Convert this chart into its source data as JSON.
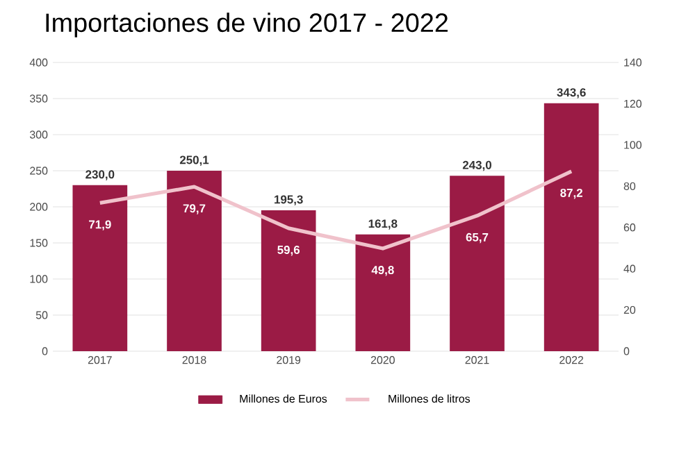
{
  "chart_data": {
    "type": "bar",
    "title": "Importaciones de vino 2017 - 2022",
    "categories": [
      "2017",
      "2018",
      "2019",
      "2020",
      "2021",
      "2022"
    ],
    "series": [
      {
        "name": "Millones de Euros",
        "color": "#9b1b45",
        "values": [
          230.0,
          250.1,
          195.3,
          161.8,
          243.0,
          343.6
        ],
        "value_labels": [
          "230,0",
          "250,1",
          "195,3",
          "161,8",
          "243,0",
          "343,6"
        ]
      },
      {
        "name": "Millones de litros",
        "type": "line",
        "axis": "y2",
        "color": "#f0c2cb",
        "line_style": "solid",
        "marker": "none",
        "values": [
          71.9,
          79.7,
          59.6,
          49.8,
          65.7,
          87.2
        ],
        "value_labels": [
          "71,9",
          "79,7",
          "59,6",
          "49,8",
          "65,7",
          "87,2"
        ]
      }
    ],
    "ylim": [
      0,
      400
    ],
    "yticks": [
      0,
      50,
      100,
      150,
      200,
      250,
      300,
      350,
      400
    ],
    "y2lim": [
      0,
      140
    ],
    "y2ticks": [
      0,
      20,
      40,
      60,
      80,
      100,
      120,
      140
    ],
    "grid": "y",
    "legend": "bottom"
  }
}
